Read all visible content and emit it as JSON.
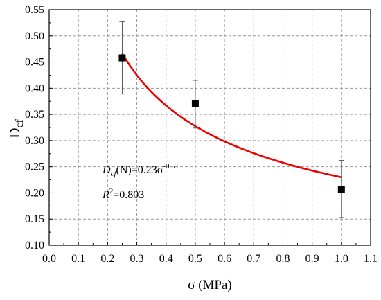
{
  "chart_data": {
    "type": "scatter",
    "title": "",
    "xlabel": "σ (MPa)",
    "ylabel_main": "D",
    "ylabel_sub": "cf",
    "xlim": [
      0.0,
      1.1
    ],
    "ylim": [
      0.1,
      0.55
    ],
    "x_ticks": [
      "0.0",
      "0.1",
      "0.2",
      "0.3",
      "0.4",
      "0.5",
      "0.6",
      "0.7",
      "0.8",
      "0.9",
      "1.0",
      "1.1"
    ],
    "y_ticks": [
      "0.10",
      "0.15",
      "0.20",
      "0.25",
      "0.30",
      "0.35",
      "0.40",
      "0.45",
      "0.50",
      "0.55"
    ],
    "grid": true,
    "colors": {
      "fit": "#ee0000",
      "points": "#000000",
      "grid": "#999999"
    },
    "points": [
      {
        "x": 0.25,
        "y": 0.458,
        "err_low": 0.389,
        "err_high": 0.527
      },
      {
        "x": 0.5,
        "y": 0.37,
        "err_low": 0.324,
        "err_high": 0.415
      },
      {
        "x": 1.0,
        "y": 0.207,
        "err_low": 0.153,
        "err_high": 0.262
      }
    ],
    "fit": {
      "a": 0.23,
      "b": -0.51,
      "x_range": [
        0.25,
        1.0
      ]
    },
    "annotation": {
      "eq_D": "D",
      "eq_sub": "cf",
      "eq_mid": "(N)=0.23σ",
      "eq_sup": "-0.51",
      "r2_R": "R",
      "r2_sup": "2",
      "r2_val": "=0.803"
    }
  }
}
